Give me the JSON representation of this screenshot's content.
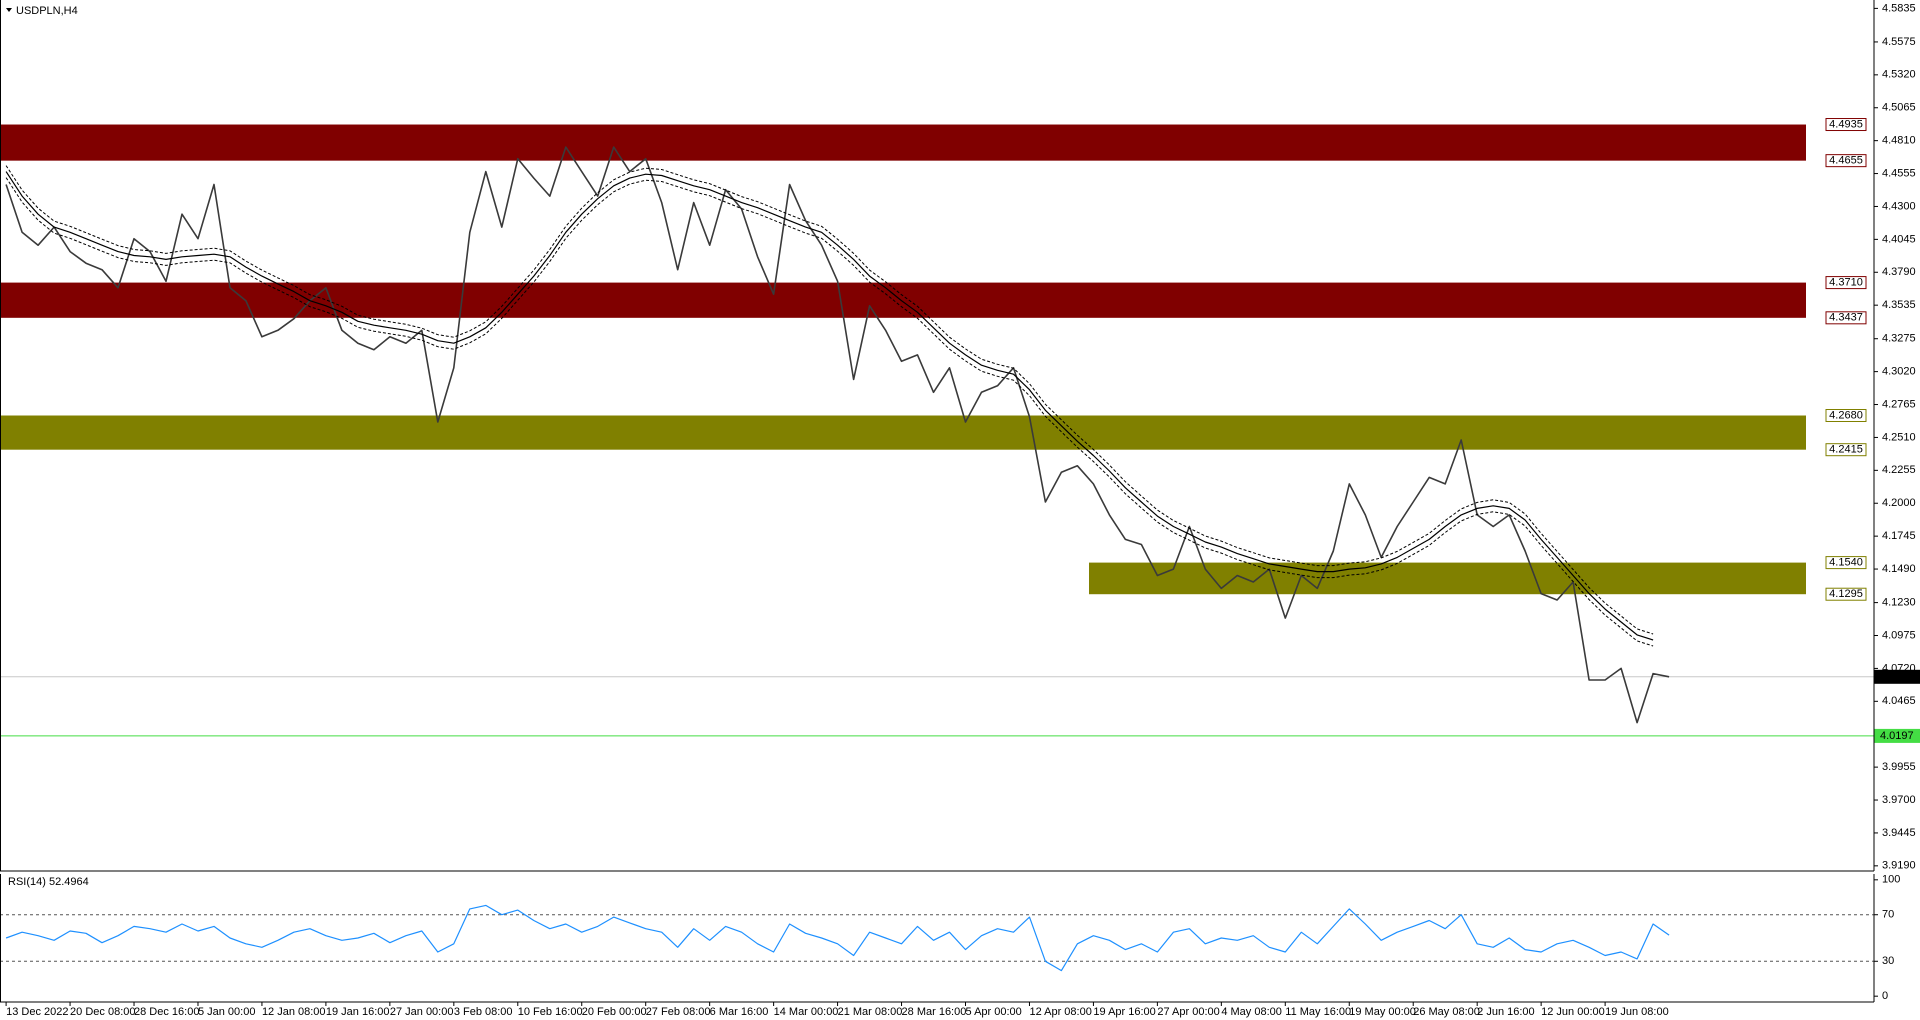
{
  "chart_data": [
    {
      "type": "line",
      "title": "USDPLN,H4",
      "categories": [
        "13 Dec 2022",
        null,
        null,
        null,
        "20 Dec 08:00",
        null,
        null,
        null,
        "28 Dec 16:00",
        null,
        null,
        null,
        "5 Jan 00:00",
        null,
        null,
        null,
        "12 Jan 08:00",
        null,
        null,
        null,
        "19 Jan 16:00",
        null,
        null,
        null,
        "27 Jan 00:00",
        null,
        null,
        null,
        "3 Feb 08:00",
        null,
        null,
        null,
        "10 Feb 16:00",
        null,
        null,
        null,
        "20 Feb 00:00",
        null,
        null,
        null,
        "27 Feb 08:00",
        null,
        null,
        null,
        "6 Mar 16:00",
        null,
        null,
        null,
        "14 Mar 00:00",
        null,
        null,
        null,
        "21 Mar 08:00",
        null,
        null,
        null,
        "28 Mar 16:00",
        null,
        null,
        null,
        "5 Apr 00:00",
        null,
        null,
        null,
        "12 Apr 08:00",
        null,
        null,
        null,
        "19 Apr 16:00",
        null,
        null,
        null,
        "27 Apr 00:00",
        null,
        null,
        null,
        "4 May 08:00",
        null,
        null,
        null,
        "11 May 16:00",
        null,
        null,
        null,
        "19 May 00:00",
        null,
        null,
        null,
        "26 May 08:00",
        null,
        null,
        null,
        "2 Jun 16:00",
        null,
        null,
        null,
        "12 Jun 00:00",
        null,
        null,
        null,
        "19 Jun 08:00",
        null,
        null,
        null,
        null
      ],
      "series": [
        {
          "color": "#3a3a3a",
          "values": [
            4.447,
            4.41,
            4.4,
            4.414,
            4.395,
            4.386,
            4.381,
            4.367,
            4.405,
            4.395,
            4.372,
            4.424,
            4.405,
            4.447,
            4.367,
            4.357,
            4.329,
            4.334,
            4.343,
            4.357,
            4.367,
            4.334,
            4.324,
            4.319,
            4.329,
            4.324,
            4.334,
            4.263,
            4.305,
            4.41,
            4.457,
            4.414,
            4.467,
            4.452,
            4.438,
            4.476,
            4.457,
            4.438,
            4.476,
            4.457,
            4.467,
            4.433,
            4.381,
            4.433,
            4.4,
            4.443,
            4.428,
            4.391,
            4.362,
            4.447,
            4.419,
            4.4,
            4.372,
            4.296,
            4.353,
            4.334,
            4.31,
            4.315,
            4.286,
            4.305,
            4.263,
            4.286,
            4.291,
            4.305,
            4.267,
            4.201,
            4.224,
            4.229,
            4.215,
            4.191,
            4.172,
            4.168,
            4.144,
            4.149,
            4.182,
            4.149,
            4.134,
            4.144,
            4.139,
            4.149,
            4.111,
            4.144,
            4.134,
            4.163,
            4.215,
            4.191,
            4.158,
            4.182,
            4.201,
            4.22,
            4.215,
            4.249,
            4.191,
            4.182,
            4.191,
            4.163,
            4.13,
            4.125,
            4.139,
            4.063,
            4.063,
            4.072,
            4.03,
            4.068,
            4.0655
          ]
        },
        {
          "color": "#000000",
          "values": [
            4.457,
            4.438,
            4.424,
            4.414,
            4.41,
            4.405,
            4.4,
            4.395,
            4.392,
            4.391,
            4.389,
            4.391,
            4.392,
            4.393,
            4.391,
            4.383,
            4.376,
            4.37,
            4.364,
            4.357,
            4.353,
            4.348,
            4.341,
            4.338,
            4.336,
            4.334,
            4.331,
            4.326,
            4.324,
            4.329,
            4.336,
            4.348,
            4.362,
            4.376,
            4.392,
            4.41,
            4.424,
            4.436,
            4.446,
            4.452,
            4.455,
            4.454,
            4.45,
            4.446,
            4.443,
            4.438,
            4.433,
            4.429,
            4.424,
            4.419,
            4.414,
            4.41,
            4.4,
            4.389,
            4.376,
            4.367,
            4.357,
            4.348,
            4.336,
            4.324,
            4.315,
            4.307,
            4.303,
            4.3,
            4.288,
            4.272,
            4.26,
            4.248,
            4.237,
            4.225,
            4.212,
            4.201,
            4.19,
            4.182,
            4.176,
            4.17,
            4.166,
            4.161,
            4.157,
            4.153,
            4.151,
            4.149,
            4.147,
            4.147,
            4.149,
            4.15,
            4.153,
            4.158,
            4.165,
            4.172,
            4.182,
            4.191,
            4.196,
            4.198,
            4.196,
            4.187,
            4.172,
            4.158,
            4.144,
            4.13,
            4.118,
            4.108,
            4.098,
            4.094,
            null
          ]
        }
      ],
      "ylim": [
        3.915,
        4.59
      ],
      "yticks": [
        {
          "value": 3.919,
          "label": "3.9190"
        },
        3.9445,
        {
          "value": 3.97,
          "label": "3.9700"
        },
        3.9955,
        4.0465,
        {
          "value": 4.072,
          "label": "4.0720"
        },
        4.0975,
        {
          "value": 4.123,
          "label": "4.1230"
        },
        {
          "value": 4.149,
          "label": "4.1490"
        },
        4.1745,
        {
          "value": 4.2,
          "label": "4.2000"
        },
        4.2255,
        {
          "value": 4.251,
          "label": "4.2510"
        },
        4.2765,
        {
          "value": 4.302,
          "label": "4.3020"
        },
        4.3275,
        4.3535,
        {
          "value": 4.379,
          "label": "4.3790"
        },
        4.4045,
        {
          "value": 4.43,
          "label": "4.4300"
        },
        4.4555,
        {
          "value": 4.481,
          "label": "4.4810"
        },
        4.5065,
        {
          "value": 4.532,
          "label": "4.5320"
        },
        4.5575,
        4.5835
      ],
      "zones": [
        {
          "top": 4.4935,
          "bottom": 4.4655,
          "color": "#800000"
        },
        {
          "top": {
            "value": 4.371,
            "label": "4.3710"
          },
          "bottom": 4.3437,
          "color": "#800000"
        },
        {
          "top": {
            "value": 4.268,
            "label": "4.2680"
          },
          "bottom": 4.2415,
          "color": "#808000"
        },
        {
          "top": {
            "value": 4.154,
            "label": "4.1540"
          },
          "bottom": 4.1295,
          "color": "#808000"
        }
      ],
      "current_price": 4.0655,
      "current_price_color": "#c8c8c8",
      "level_line": 4.0197,
      "level_line_color": "#44dd44"
    },
    {
      "type": "line",
      "title": "RSI(14) 52.4964",
      "series": [
        {
          "color": "#1e90ff",
          "values": [
            50,
            55,
            52,
            48,
            56,
            54,
            46,
            52,
            60,
            58,
            55,
            62,
            56,
            60,
            50,
            45,
            42,
            48,
            55,
            58,
            52,
            48,
            50,
            54,
            46,
            52,
            56,
            38,
            45,
            75,
            78,
            70,
            74,
            65,
            58,
            62,
            55,
            60,
            68,
            63,
            58,
            55,
            42,
            58,
            48,
            60,
            55,
            45,
            38,
            62,
            54,
            50,
            45,
            35,
            55,
            50,
            45,
            60,
            48,
            55,
            40,
            52,
            58,
            55,
            68,
            30,
            22,
            45,
            52,
            48,
            40,
            45,
            38,
            55,
            58,
            45,
            50,
            48,
            52,
            42,
            38,
            55,
            45,
            60,
            75,
            62,
            48,
            55,
            60,
            65,
            58,
            70,
            45,
            42,
            50,
            40,
            38,
            45,
            48,
            42,
            35,
            38,
            32,
            62,
            52.4964
          ]
        }
      ],
      "ylim": [
        -5,
        105
      ],
      "yticks": [
        0,
        30,
        70,
        100
      ],
      "levels": [
        30,
        70
      ]
    }
  ]
}
